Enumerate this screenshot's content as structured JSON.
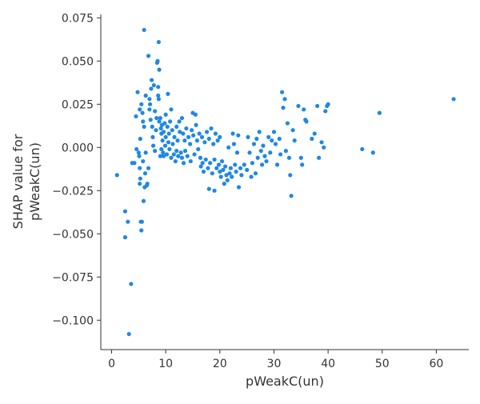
{
  "chart_data": {
    "type": "scatter",
    "xlabel": "pWeakC(un)",
    "ylabel_lines": [
      "SHAP value for",
      "pWeakC(un)"
    ],
    "xlim": [
      -2,
      66
    ],
    "ylim": [
      -0.117,
      0.077
    ],
    "xticks": [
      0,
      10,
      20,
      30,
      40,
      50,
      60
    ],
    "xtick_labels": [
      "0",
      "10",
      "20",
      "30",
      "40",
      "50",
      "60"
    ],
    "yticks": [
      -0.1,
      -0.075,
      -0.05,
      -0.025,
      0.0,
      0.025,
      0.05,
      0.075
    ],
    "ytick_labels": [
      "−0.100",
      "−0.075",
      "−0.050",
      "−0.025",
      "0.000",
      "0.025",
      "0.050",
      "0.075"
    ],
    "grid": false,
    "point_color": "#1e88e5",
    "points": [
      [
        1.0,
        -0.016
      ],
      [
        2.5,
        -0.037
      ],
      [
        2.5,
        -0.052
      ],
      [
        3.0,
        -0.043
      ],
      [
        3.2,
        -0.108
      ],
      [
        3.6,
        -0.079
      ],
      [
        3.8,
        -0.009
      ],
      [
        4.2,
        -0.009
      ],
      [
        4.5,
        0.018
      ],
      [
        4.8,
        0.032
      ],
      [
        4.6,
        -0.001
      ],
      [
        5.0,
        -0.003
      ],
      [
        5.1,
        -0.005
      ],
      [
        5.2,
        -0.012
      ],
      [
        5.3,
        -0.018
      ],
      [
        5.2,
        -0.021
      ],
      [
        5.4,
        -0.043
      ],
      [
        5.5,
        -0.048
      ],
      [
        5.6,
        -0.043
      ],
      [
        5.2,
        0.022
      ],
      [
        5.3,
        0.005
      ],
      [
        5.5,
        0.025
      ],
      [
        5.7,
        0.02
      ],
      [
        5.8,
        0.015
      ],
      [
        5.8,
        -0.008
      ],
      [
        5.9,
        -0.031
      ],
      [
        6.0,
        0.068
      ],
      [
        6.0,
        0.012
      ],
      [
        6.1,
        -0.023
      ],
      [
        6.2,
        -0.015
      ],
      [
        6.3,
        0.03
      ],
      [
        6.3,
        -0.003
      ],
      [
        6.5,
        -0.022
      ],
      [
        6.6,
        -0.021
      ],
      [
        6.8,
        0.053
      ],
      [
        6.8,
        -0.012
      ],
      [
        7.0,
        0.022
      ],
      [
        7.0,
        0.028
      ],
      [
        7.1,
        0.025
      ],
      [
        7.2,
        0.016
      ],
      [
        7.3,
        0.034
      ],
      [
        7.4,
        0.039
      ],
      [
        7.5,
        0.012
      ],
      [
        7.6,
        0.006
      ],
      [
        7.7,
        0.001
      ],
      [
        7.8,
        0.036
      ],
      [
        8.0,
        -0.002
      ],
      [
        8.0,
        0.021
      ],
      [
        8.2,
        0.01
      ],
      [
        8.3,
        0.017
      ],
      [
        8.4,
        0.049
      ],
      [
        8.5,
        0.05
      ],
      [
        8.6,
        0.035
      ],
      [
        8.6,
        0.03
      ],
      [
        8.7,
        0.061
      ],
      [
        8.7,
        0.028
      ],
      [
        8.8,
        0.045
      ],
      [
        8.8,
        0.015
      ],
      [
        9.0,
        -0.005
      ],
      [
        9.0,
        0.017
      ],
      [
        9.1,
        0.011
      ],
      [
        9.2,
        0.008
      ],
      [
        9.2,
        -0.001
      ],
      [
        9.3,
        0.013
      ],
      [
        9.4,
        0.004
      ],
      [
        9.5,
        -0.003
      ],
      [
        9.6,
        0.009
      ],
      [
        9.6,
        -0.005
      ],
      [
        9.8,
        0.014
      ],
      [
        9.9,
        0.001
      ],
      [
        10.0,
        0.019
      ],
      [
        10.0,
        0.006
      ],
      [
        10.2,
        -0.004
      ],
      [
        10.3,
        0.012
      ],
      [
        10.4,
        0.031
      ],
      [
        10.5,
        0.003
      ],
      [
        10.6,
        0.008
      ],
      [
        10.7,
        -0.001
      ],
      [
        10.8,
        0.015
      ],
      [
        11.0,
        0.022
      ],
      [
        11.0,
        -0.006
      ],
      [
        11.2,
        0.01
      ],
      [
        11.3,
        0.002
      ],
      [
        11.5,
        -0.004
      ],
      [
        11.6,
        0.006
      ],
      [
        11.8,
        -0.008
      ],
      [
        12.0,
        0.012
      ],
      [
        12.0,
        -0.002
      ],
      [
        12.2,
        0.004
      ],
      [
        12.3,
        -0.005
      ],
      [
        12.5,
        0.015
      ],
      [
        12.6,
        0.009
      ],
      [
        12.8,
        -0.003
      ],
      [
        13.0,
        0.017
      ],
      [
        13.0,
        -0.006
      ],
      [
        13.2,
        0.008
      ],
      [
        13.3,
        -0.009
      ],
      [
        13.5,
        0.004
      ],
      [
        13.6,
        -0.002
      ],
      [
        13.8,
        0.011
      ],
      [
        14.0,
        -0.005
      ],
      [
        14.2,
        0.006
      ],
      [
        14.5,
        0.002
      ],
      [
        14.6,
        -0.008
      ],
      [
        14.8,
        0.01
      ],
      [
        15.0,
        0.02
      ],
      [
        15.1,
        0.007
      ],
      [
        15.3,
        -0.004
      ],
      [
        15.5,
        0.019
      ],
      [
        15.6,
        0.013
      ],
      [
        15.8,
        0.004
      ],
      [
        16.0,
        -0.001
      ],
      [
        16.2,
        0.008
      ],
      [
        16.4,
        -0.006
      ],
      [
        16.5,
        -0.011
      ],
      [
        16.7,
        0.006
      ],
      [
        16.8,
        -0.009
      ],
      [
        17.0,
        -0.014
      ],
      [
        17.2,
        0.003
      ],
      [
        17.4,
        -0.007
      ],
      [
        17.6,
        0.009
      ],
      [
        17.8,
        -0.012
      ],
      [
        18.0,
        0.005
      ],
      [
        18.0,
        -0.024
      ],
      [
        18.2,
        -0.009
      ],
      [
        18.4,
        0.011
      ],
      [
        18.6,
        -0.015
      ],
      [
        18.8,
        0.002
      ],
      [
        19.0,
        -0.007
      ],
      [
        19.0,
        -0.025
      ],
      [
        19.2,
        0.008
      ],
      [
        19.4,
        -0.012
      ],
      [
        19.6,
        0.004
      ],
      [
        19.8,
        -0.01
      ],
      [
        20.0,
        0.006
      ],
      [
        20.0,
        -0.014
      ],
      [
        20.2,
        -0.017
      ],
      [
        20.4,
        -0.008
      ],
      [
        20.6,
        -0.013
      ],
      [
        20.8,
        -0.021
      ],
      [
        21.0,
        -0.011
      ],
      [
        21.2,
        -0.016
      ],
      [
        21.4,
        -0.019
      ],
      [
        21.6,
        0.0
      ],
      [
        21.8,
        -0.015
      ],
      [
        22.0,
        -0.012
      ],
      [
        22.2,
        -0.017
      ],
      [
        22.4,
        0.008
      ],
      [
        22.6,
        0.002
      ],
      [
        22.8,
        -0.01
      ],
      [
        23.0,
        -0.014
      ],
      [
        23.2,
        -0.003
      ],
      [
        23.4,
        0.007
      ],
      [
        23.5,
        -0.023
      ],
      [
        23.8,
        -0.012
      ],
      [
        24.0,
        -0.016
      ],
      [
        24.5,
        -0.01
      ],
      [
        25.0,
        -0.013
      ],
      [
        25.2,
        0.006
      ],
      [
        25.5,
        -0.003
      ],
      [
        25.8,
        -0.017
      ],
      [
        26.0,
        -0.009
      ],
      [
        26.3,
        0.002
      ],
      [
        26.6,
        -0.015
      ],
      [
        26.8,
        0.005
      ],
      [
        27.0,
        -0.006
      ],
      [
        27.3,
        0.009
      ],
      [
        27.6,
        -0.002
      ],
      [
        27.8,
        -0.01
      ],
      [
        28.0,
        0.001
      ],
      [
        28.3,
        -0.005
      ],
      [
        28.6,
        -0.008
      ],
      [
        29.0,
        0.006
      ],
      [
        29.3,
        -0.003
      ],
      [
        29.6,
        0.004
      ],
      [
        30.0,
        0.009
      ],
      [
        30.3,
        0.002
      ],
      [
        30.6,
        -0.01
      ],
      [
        31.0,
        0.005
      ],
      [
        31.2,
        -0.004
      ],
      [
        31.5,
        0.032
      ],
      [
        31.7,
        0.023
      ],
      [
        32.0,
        0.028
      ],
      [
        32.2,
        -0.002
      ],
      [
        32.5,
        0.014
      ],
      [
        32.8,
        -0.006
      ],
      [
        33.0,
        -0.016
      ],
      [
        33.2,
        -0.028
      ],
      [
        33.5,
        0.01
      ],
      [
        33.8,
        0.004
      ],
      [
        34.5,
        0.024
      ],
      [
        35.0,
        -0.006
      ],
      [
        35.2,
        -0.01
      ],
      [
        35.5,
        0.022
      ],
      [
        35.8,
        0.016
      ],
      [
        36.0,
        0.015
      ],
      [
        37.0,
        0.005
      ],
      [
        37.5,
        0.008
      ],
      [
        38.0,
        0.024
      ],
      [
        38.3,
        -0.006
      ],
      [
        38.8,
        0.003
      ],
      [
        39.2,
        0.0
      ],
      [
        39.5,
        0.021
      ],
      [
        39.8,
        0.024
      ],
      [
        40.0,
        0.025
      ],
      [
        46.3,
        -0.001
      ],
      [
        48.3,
        -0.003
      ],
      [
        49.5,
        0.02
      ],
      [
        63.2,
        0.028
      ]
    ]
  }
}
